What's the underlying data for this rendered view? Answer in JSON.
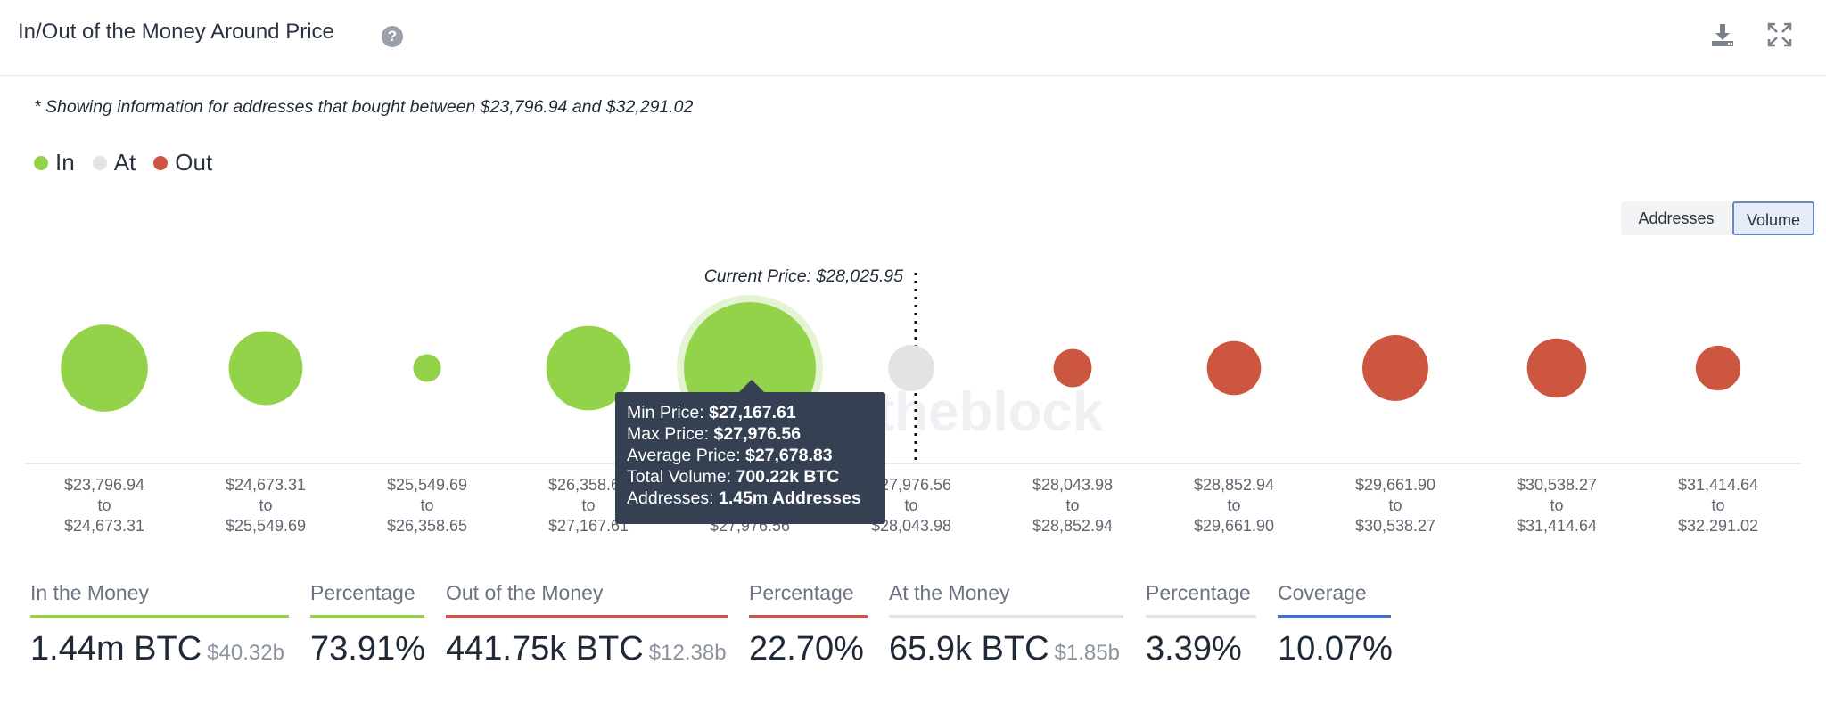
{
  "header": {
    "title": "In/Out of the Money Around Price",
    "help_icon": "question-circle-icon",
    "download_icon": "download-icon",
    "expand_icon": "expand-icon"
  },
  "note": "* Showing information for addresses that bought between $23,796.94 and $32,291.02",
  "legend": [
    {
      "label": "In",
      "color": "#93d34a"
    },
    {
      "label": "At",
      "color": "#e3e3e3"
    },
    {
      "label": "Out",
      "color": "#cc5640"
    }
  ],
  "toggle": {
    "addresses": "Addresses",
    "volume": "Volume",
    "selected": "Volume"
  },
  "watermark": "theblock",
  "chart_data": {
    "type": "scatter",
    "title": "In/Out of the Money Around Price",
    "current_price_label": "Current Price: $28,025.95",
    "current_price": 28025.95,
    "metric": "Volume",
    "buckets": [
      {
        "from": "$23,796.94",
        "to": "$24,673.31",
        "status": "In",
        "relative_size": 0.66
      },
      {
        "from": "$24,673.31",
        "to": "$25,549.69",
        "status": "In",
        "relative_size": 0.56
      },
      {
        "from": "$25,549.69",
        "to": "$26,358.65",
        "status": "In",
        "relative_size": 0.21
      },
      {
        "from": "$26,358.65",
        "to": "$27,167.61",
        "status": "In",
        "relative_size": 0.64
      },
      {
        "from": "$27,167.61",
        "to": "$27,976.56",
        "status": "In",
        "relative_size": 1.0,
        "highlighted": true
      },
      {
        "from": "$27,976.56",
        "to": "$28,043.98",
        "status": "At",
        "relative_size": 0.35
      },
      {
        "from": "$28,043.98",
        "to": "$28,852.94",
        "status": "Out",
        "relative_size": 0.29
      },
      {
        "from": "$28,852.94",
        "to": "$29,661.90",
        "status": "Out",
        "relative_size": 0.41
      },
      {
        "from": "$29,661.90",
        "to": "$30,538.27",
        "status": "Out",
        "relative_size": 0.5
      },
      {
        "from": "$30,538.27",
        "to": "$31,414.64",
        "status": "Out",
        "relative_size": 0.45
      },
      {
        "from": "$31,414.64",
        "to": "$32,291.02",
        "status": "Out",
        "relative_size": 0.34
      }
    ],
    "colors": {
      "In": "#93d34a",
      "At": "#e3e3e3",
      "Out": "#cc5640"
    }
  },
  "tooltip": {
    "rows": [
      {
        "label": "Min Price: ",
        "value": "$27,167.61"
      },
      {
        "label": "Max Price: ",
        "value": "$27,976.56"
      },
      {
        "label": "Average Price: ",
        "value": "$27,678.83"
      },
      {
        "label": "Total Volume: ",
        "value": "700.22k BTC"
      },
      {
        "label": "Addresses: ",
        "value": "1.45m Addresses"
      }
    ]
  },
  "stats": [
    {
      "label": "In the Money",
      "value": "1.44m BTC",
      "sub": "$40.32b",
      "color": "#93d34a"
    },
    {
      "label": "Percentage",
      "value": "73.91%",
      "sub": "",
      "color": "#93d34a"
    },
    {
      "label": "Out of the Money",
      "value": "441.75k BTC",
      "sub": "$12.38b",
      "color": "#cc5640"
    },
    {
      "label": "Percentage",
      "value": "22.70%",
      "sub": "",
      "color": "#cc5640"
    },
    {
      "label": "At the Money",
      "value": "65.9k BTC",
      "sub": "$1.85b",
      "color": "#e3e3e3"
    },
    {
      "label": "Percentage",
      "value": "3.39%",
      "sub": "",
      "color": "#e3e3e3"
    },
    {
      "label": "Coverage",
      "value": "10.07%",
      "sub": "",
      "color": "#3b6fd4"
    }
  ]
}
